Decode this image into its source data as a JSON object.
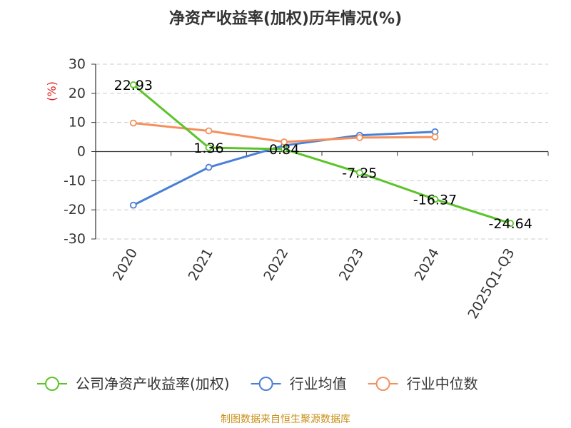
{
  "chart_data": {
    "type": "line",
    "title": "净资产收益率(加权)历年情况(%)",
    "y_unit": "(%)",
    "categories": [
      "2020",
      "2021",
      "2022",
      "2023",
      "2024",
      "2025Q1-Q3"
    ],
    "ylim": [
      -30,
      30
    ],
    "yticks": [
      30,
      20,
      10,
      0,
      -10,
      -20,
      -30
    ],
    "grid": true,
    "legend_position": "bottom",
    "series": [
      {
        "name": "公司净资产收益率(加权)",
        "color": "#5cc42a",
        "values": [
          22.93,
          1.36,
          0.84,
          -7.25,
          -16.37,
          -24.64
        ],
        "labels": [
          "22.93",
          "1.36",
          "0.84",
          "-7.25",
          "-16.37",
          "-24.64"
        ]
      },
      {
        "name": "行业均值",
        "color": "#4a7fd6",
        "values": [
          -18.4,
          -5.4,
          2.1,
          5.6,
          6.8,
          null
        ]
      },
      {
        "name": "行业中位数",
        "color": "#f4905c",
        "values": [
          9.8,
          7.1,
          3.3,
          4.8,
          5.0,
          null
        ]
      }
    ]
  },
  "source": "制图数据来自恒生聚源数据库"
}
